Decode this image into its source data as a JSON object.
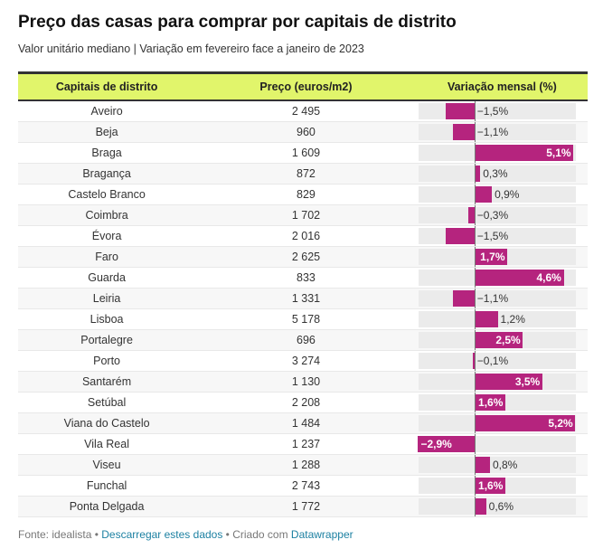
{
  "title": "Preço das casas para comprar por capitais de distrito",
  "subtitle": "Valor unitário mediano | Variação em fevereiro face a janeiro de 2023",
  "accent": "#b5247e",
  "header_color": "#e1f56b",
  "chart_data": {
    "type": "table",
    "columns": [
      "Capitais de distrito",
      "Preço (euros/m2)",
      "Variação mensal (%)"
    ],
    "range": [
      -2.9,
      5.2
    ],
    "rows": [
      {
        "name": "Aveiro",
        "price": "2 495",
        "var": -1.5,
        "label": "−1,5%"
      },
      {
        "name": "Beja",
        "price": "960",
        "var": -1.1,
        "label": "−1,1%"
      },
      {
        "name": "Braga",
        "price": "1 609",
        "var": 5.1,
        "label": "5,1%"
      },
      {
        "name": "Bragança",
        "price": "872",
        "var": 0.3,
        "label": "0,3%"
      },
      {
        "name": "Castelo Branco",
        "price": "829",
        "var": 0.9,
        "label": "0,9%"
      },
      {
        "name": "Coimbra",
        "price": "1 702",
        "var": -0.3,
        "label": "−0,3%"
      },
      {
        "name": "Évora",
        "price": "2 016",
        "var": -1.5,
        "label": "−1,5%"
      },
      {
        "name": "Faro",
        "price": "2 625",
        "var": 1.7,
        "label": "1,7%"
      },
      {
        "name": "Guarda",
        "price": "833",
        "var": 4.6,
        "label": "4,6%"
      },
      {
        "name": "Leiria",
        "price": "1 331",
        "var": -1.1,
        "label": "−1,1%"
      },
      {
        "name": "Lisboa",
        "price": "5 178",
        "var": 1.2,
        "label": "1,2%"
      },
      {
        "name": "Portalegre",
        "price": "696",
        "var": 2.5,
        "label": "2,5%"
      },
      {
        "name": "Porto",
        "price": "3 274",
        "var": -0.1,
        "label": "−0,1%"
      },
      {
        "name": "Santarém",
        "price": "1 130",
        "var": 3.5,
        "label": "3,5%"
      },
      {
        "name": "Setúbal",
        "price": "2 208",
        "var": 1.6,
        "label": "1,6%"
      },
      {
        "name": "Viana do Castelo",
        "price": "1 484",
        "var": 5.2,
        "label": "5,2%"
      },
      {
        "name": "Vila Real",
        "price": "1 237",
        "var": -2.9,
        "label": "−2,9%"
      },
      {
        "name": "Viseu",
        "price": "1 288",
        "var": 0.8,
        "label": "0,8%"
      },
      {
        "name": "Funchal",
        "price": "2 743",
        "var": 1.6,
        "label": "1,6%"
      },
      {
        "name": "Ponta Delgada",
        "price": "1 772",
        "var": 0.6,
        "label": "0,6%"
      }
    ]
  },
  "footer": {
    "source": "Fonte: idealista",
    "sep1": " • ",
    "download": "Descarregar estes dados",
    "sep2": " • Criado com ",
    "tool": "Datawrapper"
  }
}
